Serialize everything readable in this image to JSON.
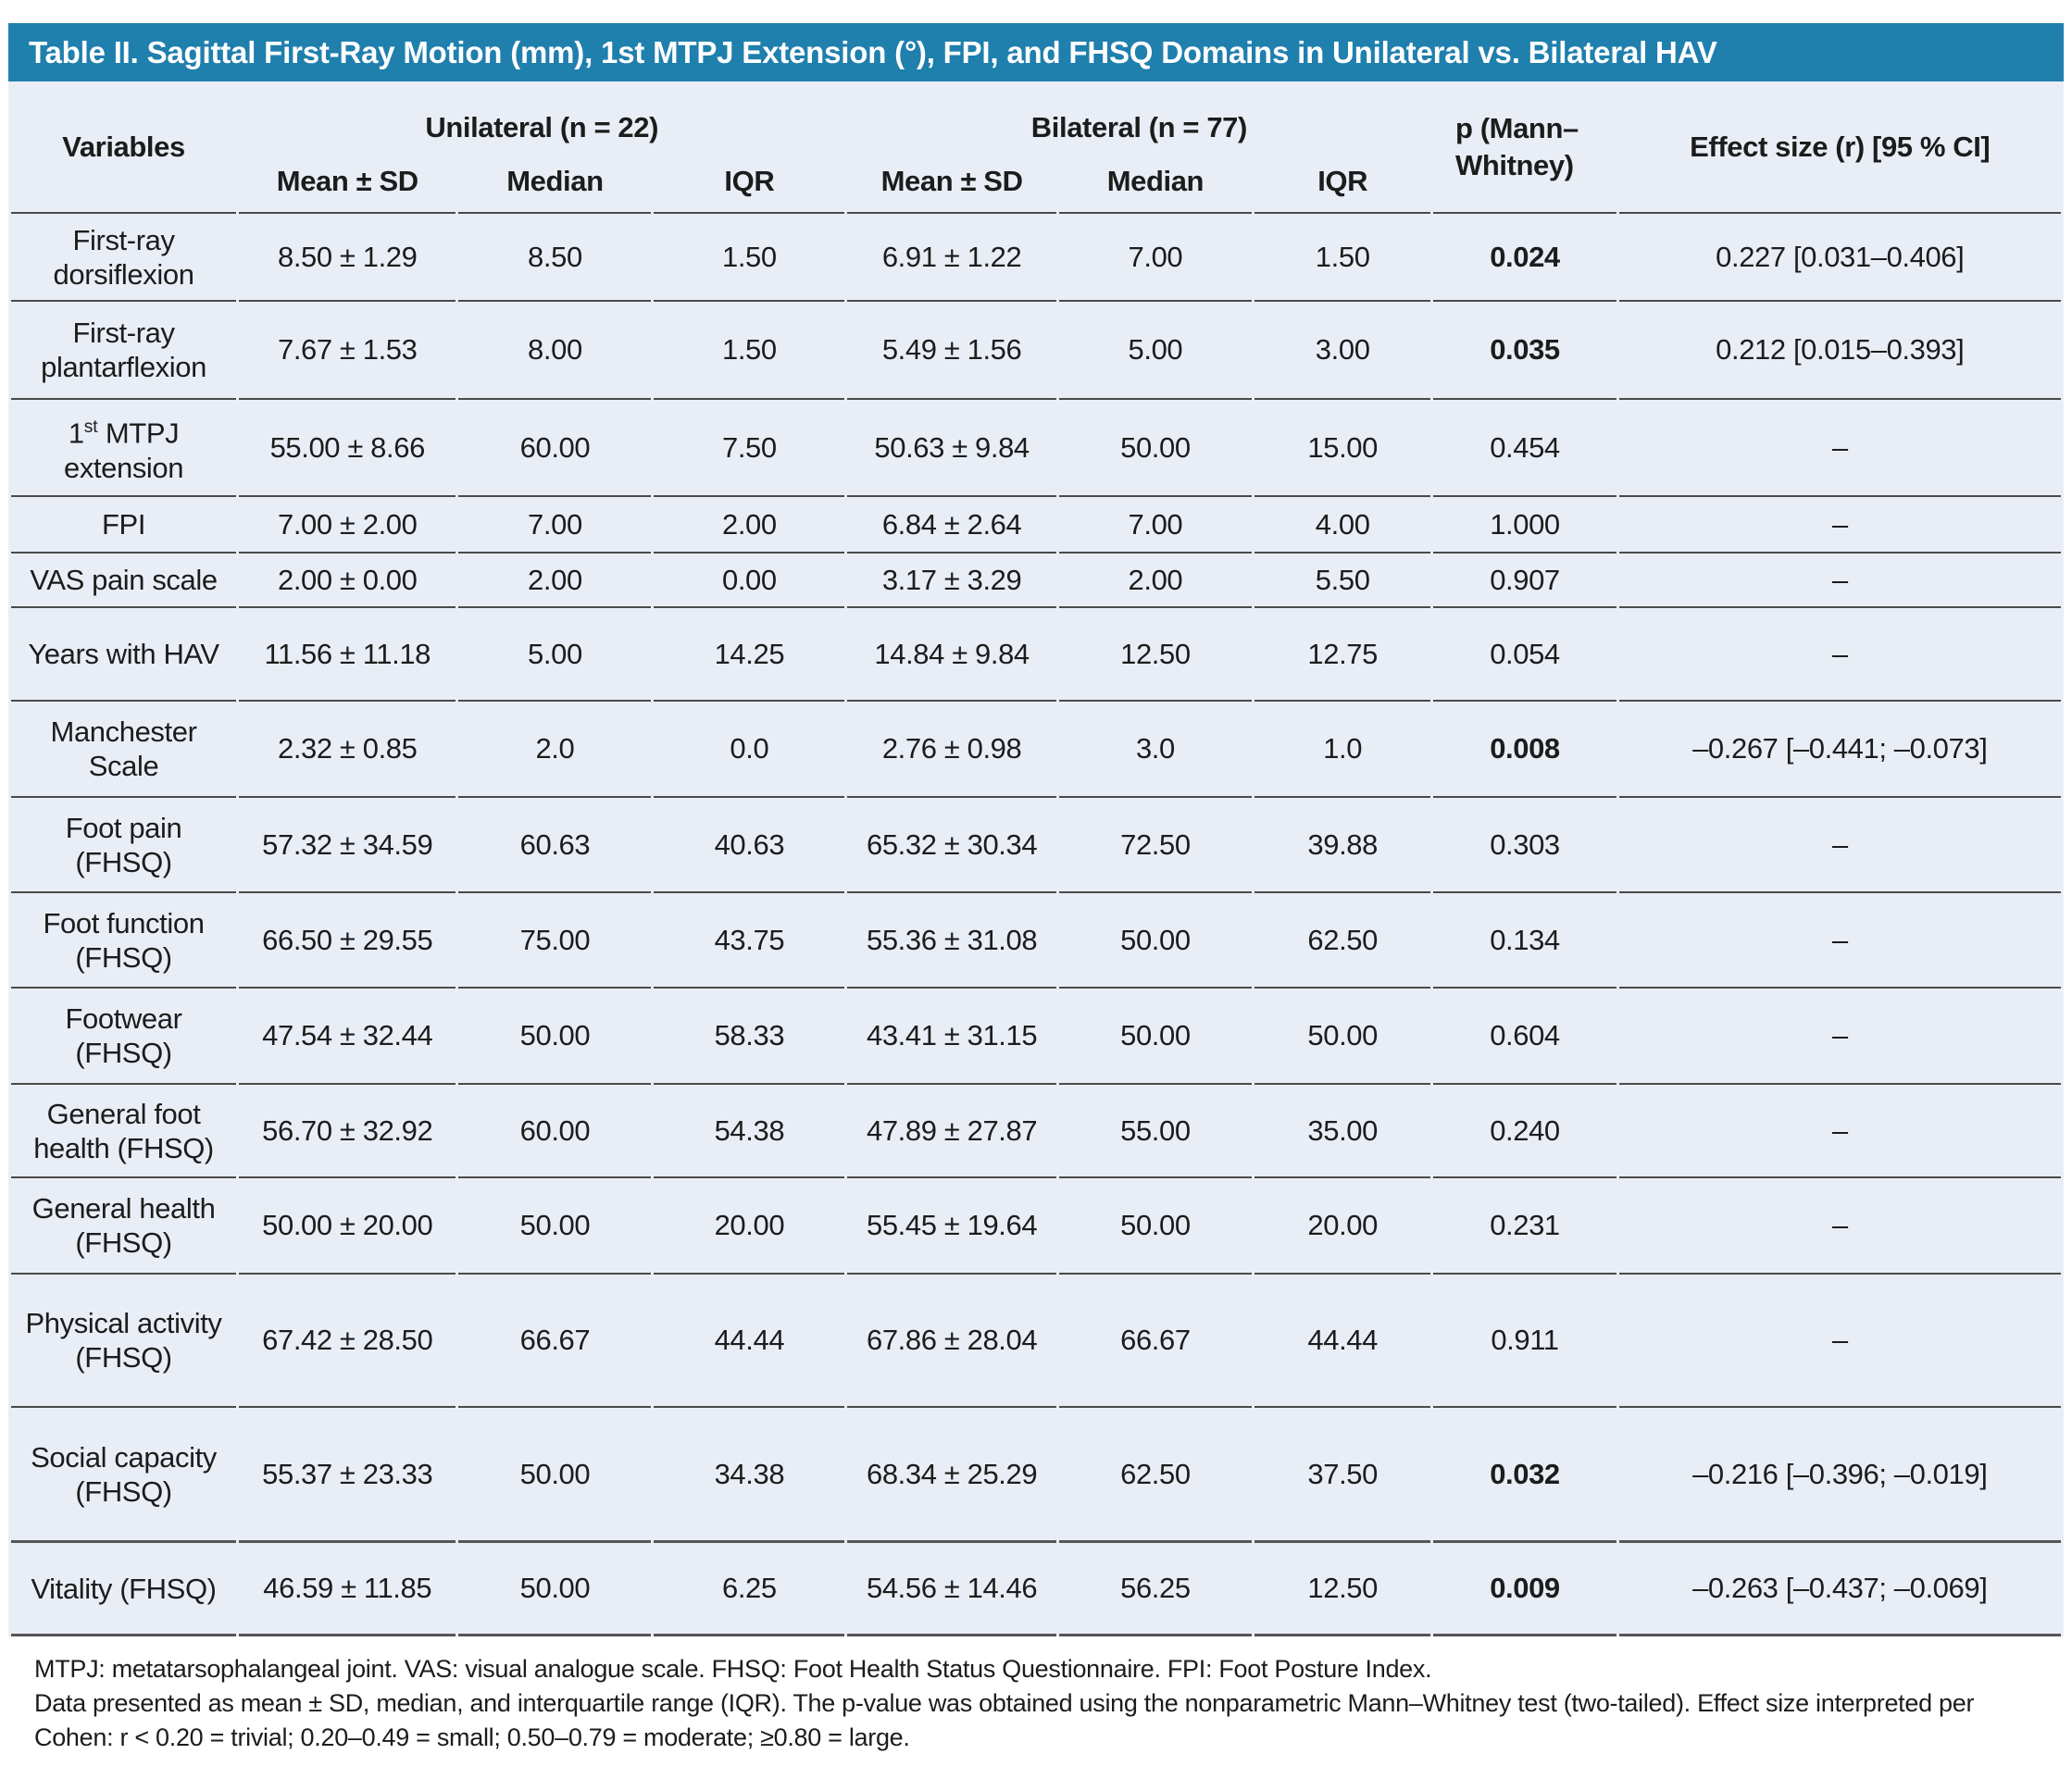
{
  "title": "Table II. Sagittal First-Ray Motion (mm), 1st MTPJ Extension (°), FPI, and FHSQ Domains in Unilateral vs. Bilateral HAV",
  "header": {
    "variables_label": "Variables",
    "groups": [
      {
        "label": "Unilateral (n = 22)",
        "subcols": [
          "Mean ± SD",
          "Median",
          "IQR"
        ]
      },
      {
        "label": "Bilateral (n = 77)",
        "subcols": [
          "Mean ± SD",
          "Median",
          "IQR"
        ]
      }
    ],
    "p_label": "p (Mann–Whitney)",
    "effect_label": "Effect size (r) [95 % CI]"
  },
  "rows": [
    {
      "variable": "First-ray dorsiflexion",
      "uni": [
        "8.50 ± 1.29",
        "8.50",
        "1.50"
      ],
      "bil": [
        "6.91 ± 1.22",
        "7.00",
        "1.50"
      ],
      "p": "0.024",
      "p_bold": true,
      "effect": "0.227 [0.031–0.406]"
    },
    {
      "variable": "First-ray plantarflexion",
      "uni": [
        "7.67 ± 1.53",
        "8.00",
        "1.50"
      ],
      "bil": [
        "5.49 ± 1.56",
        "5.00",
        "3.00"
      ],
      "p": "0.035",
      "p_bold": true,
      "effect": "0.212 [0.015–0.393]"
    },
    {
      "variable": "1st MTPJ extension",
      "variable_parts": [
        {
          "t": "1"
        },
        {
          "t": "st",
          "sup": true
        },
        {
          "t": " MTPJ extension"
        }
      ],
      "uni": [
        "55.00 ± 8.66",
        "60.00",
        "7.50"
      ],
      "bil": [
        "50.63 ± 9.84",
        "50.00",
        "15.00"
      ],
      "p": "0.454",
      "p_bold": false,
      "effect": "–"
    },
    {
      "variable": "FPI",
      "uni": [
        "7.00 ± 2.00",
        "7.00",
        "2.00"
      ],
      "bil": [
        "6.84 ± 2.64",
        "7.00",
        "4.00"
      ],
      "p": "1.000",
      "p_bold": false,
      "effect": "–"
    },
    {
      "variable": "VAS pain scale",
      "uni": [
        "2.00 ± 0.00",
        "2.00",
        "0.00"
      ],
      "bil": [
        "3.17 ± 3.29",
        "2.00",
        "5.50"
      ],
      "p": "0.907",
      "p_bold": false,
      "effect": "–"
    },
    {
      "variable": "Years with HAV",
      "uni": [
        "11.56 ± 11.18",
        "5.00",
        "14.25"
      ],
      "bil": [
        "14.84 ± 9.84",
        "12.50",
        "12.75"
      ],
      "p": "0.054",
      "p_bold": false,
      "effect": "–"
    },
    {
      "variable": "Manchester Scale",
      "uni": [
        "2.32 ± 0.85",
        "2.0",
        "0.0"
      ],
      "bil": [
        "2.76 ± 0.98",
        "3.0",
        "1.0"
      ],
      "p": "0.008",
      "p_bold": true,
      "effect": "–0.267 [–0.441; –0.073]"
    },
    {
      "variable": "Foot pain (FHSQ)",
      "uni": [
        "57.32 ± 34.59",
        "60.63",
        "40.63"
      ],
      "bil": [
        "65.32 ± 30.34",
        "72.50",
        "39.88"
      ],
      "p": "0.303",
      "p_bold": false,
      "effect": "–"
    },
    {
      "variable": "Foot function (FHSQ)",
      "uni": [
        "66.50 ± 29.55",
        "75.00",
        "43.75"
      ],
      "bil": [
        "55.36 ± 31.08",
        "50.00",
        "62.50"
      ],
      "p": "0.134",
      "p_bold": false,
      "effect": "–"
    },
    {
      "variable": "Footwear (FHSQ)",
      "uni": [
        "47.54 ± 32.44",
        "50.00",
        "58.33"
      ],
      "bil": [
        "43.41 ± 31.15",
        "50.00",
        "50.00"
      ],
      "p": "0.604",
      "p_bold": false,
      "effect": "–"
    },
    {
      "variable": "General foot health (FHSQ)",
      "uni": [
        "56.70 ± 32.92",
        "60.00",
        "54.38"
      ],
      "bil": [
        "47.89 ± 27.87",
        "55.00",
        "35.00"
      ],
      "p": "0.240",
      "p_bold": false,
      "effect": "–"
    },
    {
      "variable": "General health (FHSQ)",
      "uni": [
        "50.00 ± 20.00",
        "50.00",
        "20.00"
      ],
      "bil": [
        "55.45 ± 19.64",
        "50.00",
        "20.00"
      ],
      "p": "0.231",
      "p_bold": false,
      "effect": "–"
    },
    {
      "variable": "Physical activity (FHSQ)",
      "uni": [
        "67.42 ± 28.50",
        "66.67",
        "44.44"
      ],
      "bil": [
        "67.86 ± 28.04",
        "66.67",
        "44.44"
      ],
      "p": "0.911",
      "p_bold": false,
      "effect": "–"
    },
    {
      "variable": "Social capacity (FHSQ)",
      "uni": [
        "55.37 ± 23.33",
        "50.00",
        "34.38"
      ],
      "bil": [
        "68.34 ± 25.29",
        "62.50",
        "37.50"
      ],
      "p": "0.032",
      "p_bold": true,
      "effect": "–0.216 [–0.396; –0.019]"
    },
    {
      "variable": "Vitality (FHSQ)",
      "uni": [
        "46.59 ± 11.85",
        "50.00",
        "6.25"
      ],
      "bil": [
        "54.56 ± 14.46",
        "56.25",
        "12.50"
      ],
      "p": "0.009",
      "p_bold": true,
      "effect": "–0.263 [–0.437; –0.069]"
    }
  ],
  "footnotes": [
    "MTPJ: metatarsophalangeal joint. VAS: visual analogue scale. FHSQ: Foot Health Status Questionnaire. FPI: Foot Posture Index.",
    "Data presented as mean ± SD, median, and interquartile range (IQR). The p-value was obtained using the nonparametric Mann–Whitney test (two-tailed). Effect size interpreted per Cohen: r < 0.20 = trivial; 0.20–0.49 = small; 0.50–0.79 = moderate; ≥0.80 = large."
  ],
  "colors": {
    "title_bar": "#1f7fad",
    "table_background": "#e9eef6",
    "row_border": "#4a4a4a",
    "title_text": "#ffffff",
    "body_text": "#1c1c1c"
  }
}
